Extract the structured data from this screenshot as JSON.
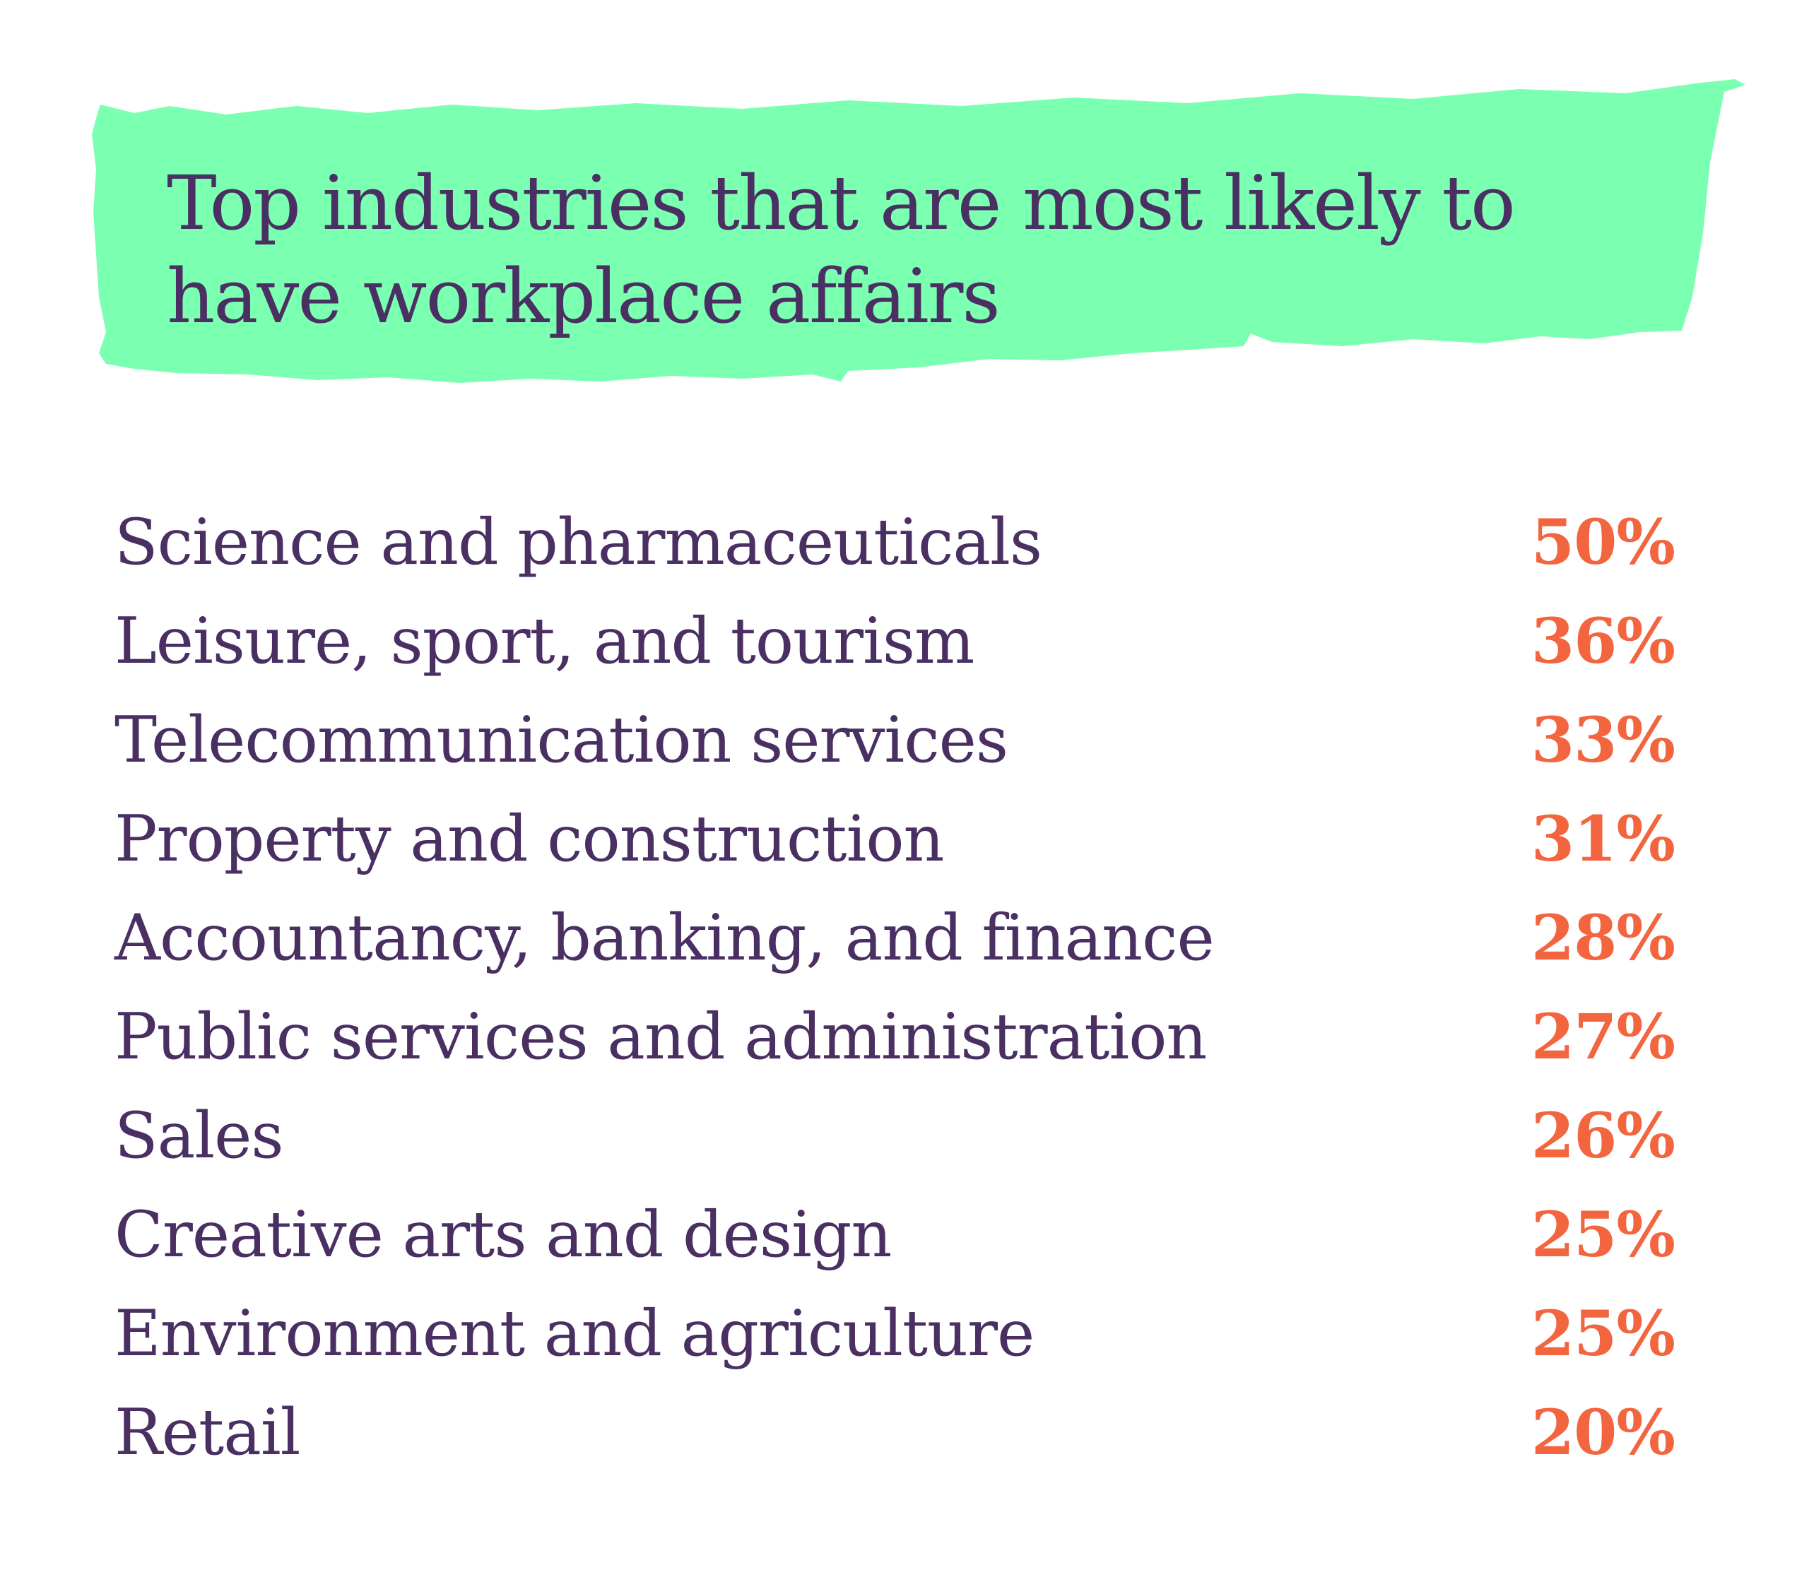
{
  "colors": {
    "banner": "#7bffb0",
    "text": "#4a2f63",
    "value": "#f2653f",
    "background": "#ffffff"
  },
  "chart_data": {
    "type": "table",
    "title": "Top industries that are most likely to have workplace affairs",
    "rows": [
      {
        "label": "Science and pharmaceuticals",
        "value": 50,
        "display": "50%"
      },
      {
        "label": "Leisure, sport, and tourism",
        "value": 36,
        "display": "36%"
      },
      {
        "label": "Telecommunication services",
        "value": 33,
        "display": "33%"
      },
      {
        "label": "Property and construction",
        "value": 31,
        "display": "31%"
      },
      {
        "label": "Accountancy, banking, and finance",
        "value": 28,
        "display": "28%"
      },
      {
        "label": "Public services and administration",
        "value": 27,
        "display": "27%"
      },
      {
        "label": "Sales",
        "value": 26,
        "display": "26%"
      },
      {
        "label": "Creative arts and design",
        "value": 25,
        "display": "25%"
      },
      {
        "label": "Environment and agriculture",
        "value": 25,
        "display": "25%"
      },
      {
        "label": "Retail",
        "value": 20,
        "display": "20%"
      }
    ]
  }
}
